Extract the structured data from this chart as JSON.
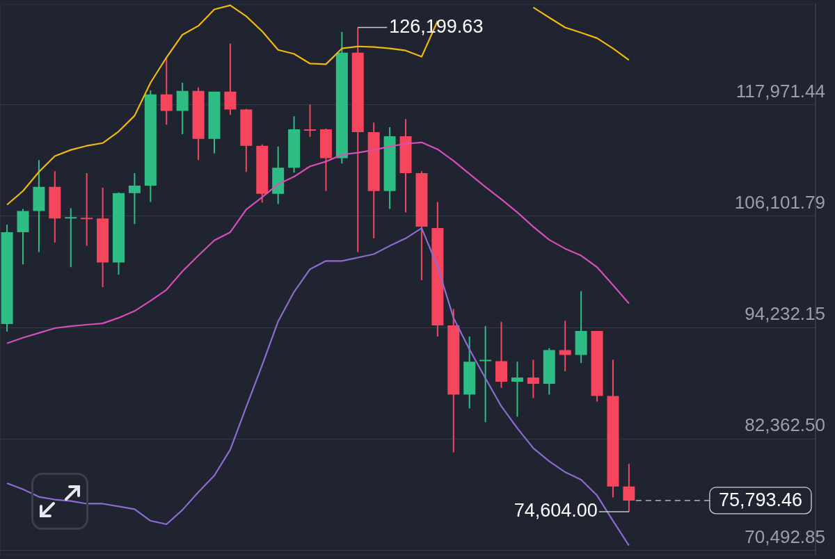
{
  "chart_data": {
    "type": "candlestick",
    "categories": [
      null,
      null,
      null,
      null,
      null,
      null,
      null,
      null,
      null,
      null,
      null,
      null,
      null,
      null,
      null,
      null,
      null,
      null,
      null,
      null,
      null,
      null,
      null,
      null,
      null,
      null,
      null,
      null,
      null,
      null,
      null,
      null,
      null,
      null,
      null,
      null,
      null,
      null,
      null,
      null
    ],
    "ohlc": [
      [
        94600,
        105190,
        93800,
        104390
      ],
      [
        104390,
        106870,
        100950,
        106650
      ],
      [
        106650,
        112060,
        102270,
        109210
      ],
      [
        109210,
        110890,
        103290,
        105850
      ],
      [
        105850,
        106940,
        100660,
        105990
      ],
      [
        105920,
        110670,
        102930,
        105770
      ],
      [
        105850,
        109130,
        98540,
        101170
      ],
      [
        101170,
        108620,
        99860,
        108550
      ],
      [
        108550,
        110670,
        105260,
        109350
      ],
      [
        109350,
        119500,
        107600,
        119070
      ],
      [
        119070,
        123010,
        115850,
        117310
      ],
      [
        117310,
        120310,
        114830,
        119430
      ],
      [
        119430,
        119800,
        112060,
        114320
      ],
      [
        114320,
        119360,
        112790,
        119360
      ],
      [
        119360,
        124470,
        116880,
        117460
      ],
      [
        117460,
        117530,
        110810,
        113590
      ],
      [
        113590,
        113740,
        107530,
        108480
      ],
      [
        108480,
        113520,
        107380,
        111250
      ],
      [
        111250,
        116730,
        110740,
        115340
      ],
      [
        115340,
        117970,
        114540,
        115200
      ],
      [
        115340,
        115420,
        108770,
        112270
      ],
      [
        112270,
        125710,
        111690,
        123520
      ],
      [
        123520,
        126199.63,
        102270,
        115050
      ],
      [
        115050,
        116070,
        103730,
        108770
      ],
      [
        108770,
        115560,
        106870,
        114610
      ],
      [
        114610,
        116440,
        106500,
        110670
      ],
      [
        110670,
        110890,
        99270,
        104970
      ],
      [
        104820,
        107600,
        93280,
        94450
      ],
      [
        94450,
        96200,
        80940,
        87080
      ],
      [
        87080,
        93280,
        85610,
        90580
      ],
      [
        90650,
        94380,
        84150,
        90800
      ],
      [
        90650,
        94820,
        87810,
        88460
      ],
      [
        88460,
        90580,
        84740,
        88900
      ],
      [
        88900,
        90800,
        86710,
        88240
      ],
      [
        88240,
        92040,
        87080,
        91820
      ],
      [
        91820,
        94960,
        89560,
        91310
      ],
      [
        91310,
        98100,
        90440,
        93870
      ],
      [
        93870,
        93870,
        86350,
        86930
      ],
      [
        86930,
        90800,
        76120,
        77290
      ],
      [
        77290,
        79700,
        74604,
        75793.46
      ]
    ],
    "series": [
      {
        "type": "line",
        "color": "#f0b90b",
        "values": [
          107310,
          108770,
          110810,
          112490,
          113150,
          113590,
          113880,
          115120,
          116800,
          120310,
          123010,
          125420,
          126370,
          128120,
          128560,
          127390,
          125790,
          123810,
          123380,
          122350,
          122280,
          123960,
          124180,
          124110,
          123960,
          123740,
          123080,
          126880,
          null,
          null,
          null,
          null,
          null,
          128340,
          127250,
          126200,
          125640,
          125060,
          123960,
          122720
        ]
      },
      {
        "type": "line",
        "color": "#d64fb9",
        "values": [
          92550,
          93140,
          93650,
          94160,
          94380,
          94530,
          94670,
          95260,
          95990,
          97080,
          98250,
          100220,
          101900,
          103510,
          104390,
          106800,
          108110,
          109500,
          110300,
          111400,
          111910,
          112640,
          112860,
          113150,
          113520,
          113810,
          113950,
          113220,
          111980,
          110590,
          109210,
          107890,
          106500,
          104970,
          103580,
          102630,
          101900,
          100660,
          98760,
          96790
        ]
      },
      {
        "type": "line",
        "color": "#8e6bd1",
        "values": [
          77650,
          76990,
          76190,
          75900,
          75750,
          75460,
          75460,
          75170,
          74880,
          73640,
          73270,
          74800,
          76700,
          78460,
          81230,
          85760,
          90220,
          94890,
          98030,
          100440,
          101320,
          101320,
          101680,
          102050,
          102930,
          103730,
          104820,
          100730,
          95260,
          91900,
          88830,
          85830,
          83500,
          81380,
          79990,
          78820,
          78020,
          76340,
          73640,
          71010
        ]
      }
    ],
    "ylim": [
      69984,
      128708
    ],
    "yticks": [
      {
        "value": 70492.85,
        "label": "70,492.85"
      },
      {
        "value": 82362.5,
        "label": "82,362.50"
      },
      {
        "value": 94232.15,
        "label": "94,232.15"
      },
      {
        "value": 106101.79,
        "label": "106,101.79"
      },
      {
        "value": 117971.44,
        "label": "117,971.44"
      }
    ],
    "annotations": [
      {
        "text": "126,199.63",
        "y": 126199.63
      },
      "74,604.00"
    ],
    "ref_lines": [
      {
        "axis": "y",
        "value": 75793.46,
        "label": "75,793.46",
        "color": "#d0d3d8",
        "line_style": "dashed"
      }
    ],
    "grid": "y",
    "tick_labels": "y",
    "marker": "none",
    "line_style": "solid"
  }
}
